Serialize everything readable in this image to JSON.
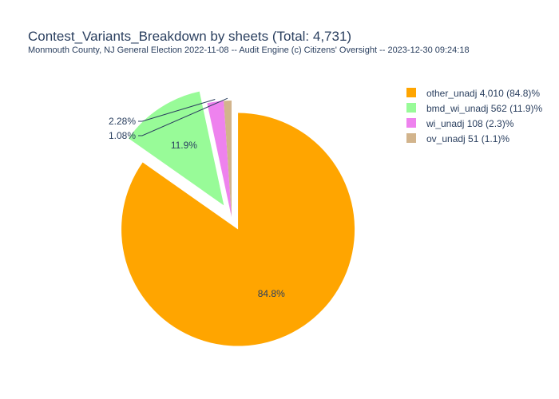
{
  "chart_data": {
    "type": "pie",
    "title": "Contest_Variants_Breakdown by sheets (Total: 4,731)",
    "subtitle": "Monmouth County, NJ General Election 2022-11-08 -- Audit Engine (c) Citizens' Oversight -- 2023-12-30 09:24:18",
    "legend_position": "top-right",
    "slices": [
      {
        "label": "other_unadj",
        "value": 4010,
        "percent_text": "84.8%",
        "legend": "other_unadj 4,010 (84.8)%",
        "color": "#FFA500",
        "pulled": true
      },
      {
        "label": "bmd_wi_unadj",
        "value": 562,
        "percent_text": "11.9%",
        "legend": "bmd_wi_unadj 562 (11.9)%",
        "color": "#98FB98",
        "pulled": true
      },
      {
        "label": "wi_unadj",
        "value": 108,
        "percent_text": "2.28%",
        "legend": "wi_unadj 108 (2.3)%",
        "color": "#EE82EE",
        "pulled": false
      },
      {
        "label": "ov_unadj",
        "value": 51,
        "percent_text": "1.08%",
        "legend": "ov_unadj 51 (1.1)%",
        "color": "#D2B48C",
        "pulled": false
      }
    ]
  }
}
